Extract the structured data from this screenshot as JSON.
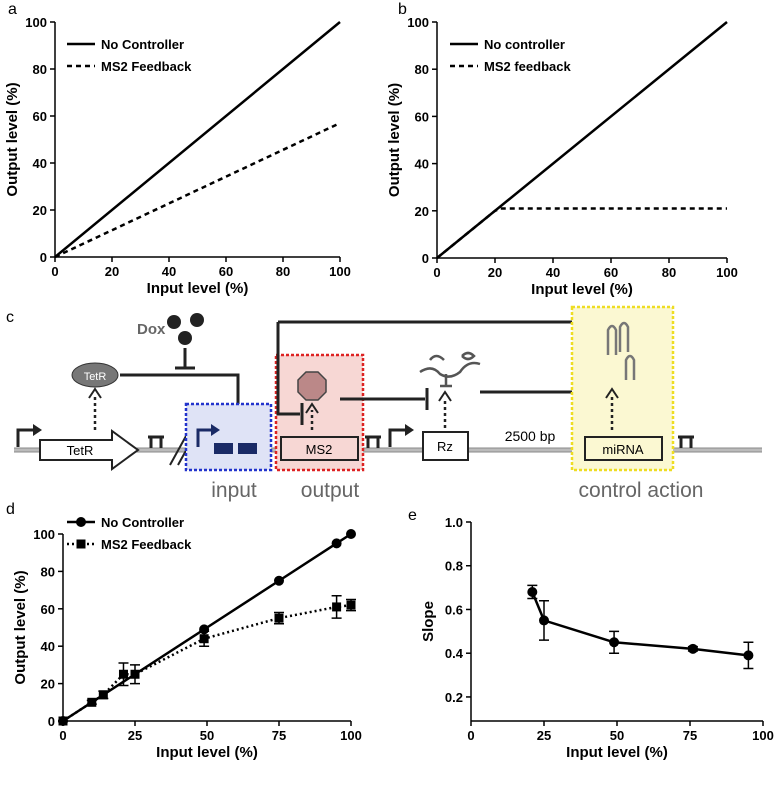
{
  "chart_data": [
    {
      "type": "line",
      "panel_label": "a",
      "xlabel": "Input level (%)",
      "ylabel": "Output level (%)",
      "xlim": [
        0,
        100
      ],
      "ylim": [
        0,
        100
      ],
      "xticks": [
        0,
        20,
        40,
        60,
        80,
        100
      ],
      "yticks": [
        0,
        20,
        40,
        60,
        80,
        100
      ],
      "legend": "upper left",
      "series": [
        {
          "name": "No Controller",
          "color": "#000000",
          "linestyle": "solid",
          "x": [
            0,
            100
          ],
          "values": [
            0,
            100
          ]
        },
        {
          "name": "MS2 Feedback",
          "color": "#000000",
          "linestyle": "dashed",
          "x": [
            0,
            100
          ],
          "values": [
            0,
            57
          ]
        }
      ]
    },
    {
      "type": "line",
      "panel_label": "b",
      "xlabel": "Input level (%)",
      "ylabel": "Output level (%)",
      "xlim": [
        0,
        100
      ],
      "ylim": [
        0,
        100
      ],
      "xticks": [
        0,
        20,
        40,
        60,
        80,
        100
      ],
      "yticks": [
        0,
        20,
        40,
        60,
        80,
        100
      ],
      "legend": "upper left",
      "series": [
        {
          "name": "No controller",
          "color": "#000000",
          "linestyle": "solid",
          "x": [
            0,
            100
          ],
          "values": [
            0,
            100
          ]
        },
        {
          "name": "MS2 feedback",
          "color": "#000000",
          "linestyle": "dashed",
          "x": [
            0,
            20,
            22,
            100
          ],
          "values": [
            0,
            20,
            21,
            21
          ]
        }
      ]
    },
    {
      "type": "line",
      "panel_label": "d",
      "xlabel": "Input level (%)",
      "ylabel": "Output level (%)",
      "xlim": [
        0,
        100
      ],
      "ylim": [
        0,
        100
      ],
      "xticks": [
        0,
        25,
        50,
        75,
        100
      ],
      "yticks": [
        0,
        20,
        40,
        60,
        80,
        100
      ],
      "legend": "upper left",
      "series": [
        {
          "name": "No Controller",
          "color": "#000000",
          "linestyle": "solid",
          "marker": "circle",
          "x": [
            0,
            49,
            75,
            95,
            100
          ],
          "values": [
            0,
            49,
            75,
            95,
            100
          ]
        },
        {
          "name": "MS2 Feedback",
          "color": "#000000",
          "linestyle": "dotted",
          "marker": "square",
          "x": [
            0,
            10,
            14,
            21,
            25,
            49,
            75,
            95,
            100
          ],
          "values": [
            0,
            10,
            14,
            25,
            25,
            44,
            55,
            61,
            62
          ],
          "errors": [
            0,
            1,
            2,
            6,
            5,
            4,
            3,
            6,
            3
          ]
        }
      ]
    },
    {
      "type": "line",
      "panel_label": "e",
      "xlabel": "Input level (%)",
      "ylabel": "Slope",
      "xlim": [
        0,
        100
      ],
      "ylim": [
        0.09,
        1.0
      ],
      "xticks": [
        0,
        25,
        50,
        75,
        100
      ],
      "yticks": [
        0.2,
        0.4,
        0.6,
        0.8,
        {
          "value": 1.0,
          "label": "1.0"
        }
      ],
      "series": [
        {
          "color": "#000000",
          "linestyle": "solid",
          "marker": "circle",
          "x": [
            21,
            25,
            49,
            76,
            95
          ],
          "values": [
            0.68,
            0.55,
            0.45,
            0.42,
            0.39
          ],
          "errors": [
            0.03,
            0.09,
            0.05,
            0.01,
            0.06
          ]
        }
      ]
    }
  ],
  "diagram": {
    "panel_label": "c",
    "inducer": "Dox",
    "repressor": "TetR",
    "genes": [
      "TetR",
      "MS2",
      "Rz",
      "miRNA"
    ],
    "distance": "2500 bp",
    "regions": [
      "input",
      "output",
      "control action"
    ]
  }
}
